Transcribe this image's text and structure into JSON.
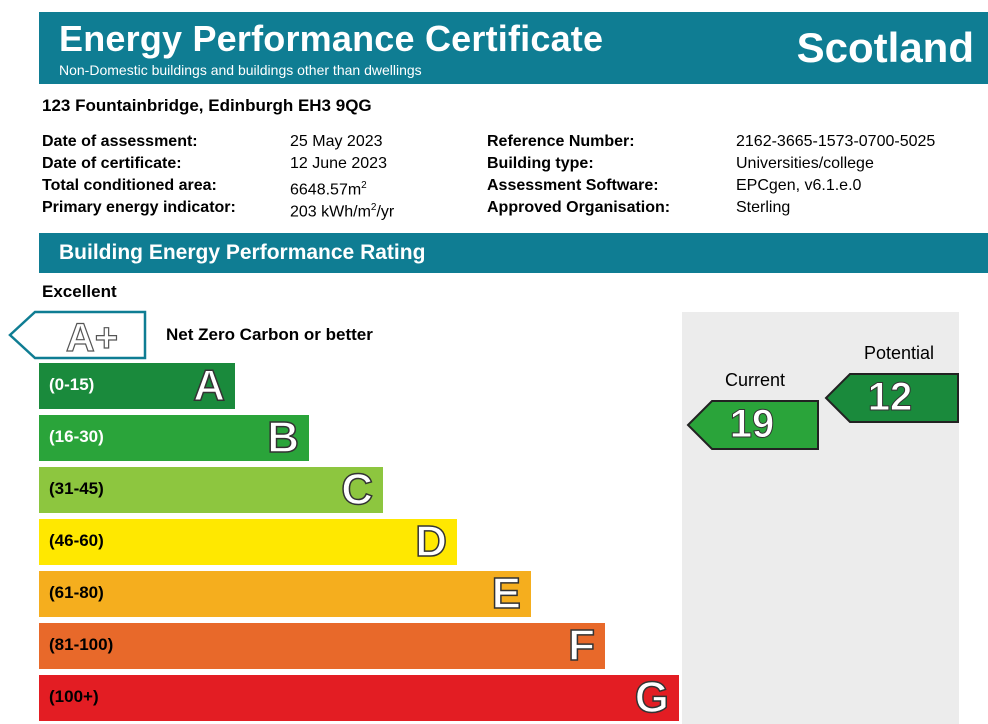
{
  "header": {
    "title": "Energy Performance Certificate",
    "subtitle": "Non-Domestic buildings and buildings other than dwellings",
    "region": "Scotland"
  },
  "address": "123 Fountainbridge, Edinburgh EH3 9QG",
  "details_left": [
    {
      "label": "Date of assessment:",
      "value": "25 May 2023"
    },
    {
      "label": "Date of certificate:",
      "value": "12 June 2023"
    },
    {
      "label": "Total conditioned area:",
      "value": "6648.57m",
      "sup": "2"
    },
    {
      "label": "Primary energy indicator:",
      "value_pre": "203 kWh/m",
      "sup": "2",
      "value_post": "/yr"
    }
  ],
  "details_right": [
    {
      "label": "Reference Number:",
      "value": "2162-3665-1573-0700-5025"
    },
    {
      "label": "Building type:",
      "value": "Universities/college"
    },
    {
      "label": "Assessment Software:",
      "value": "EPCgen, v6.1.e.0"
    },
    {
      "label": "Approved Organisation:",
      "value": "Sterling"
    }
  ],
  "section_title": "Building Energy Performance Rating",
  "excellent_label": "Excellent",
  "aplus": {
    "letter": "A+",
    "label": "Net Zero Carbon or better"
  },
  "bands": [
    {
      "range": "(0-15)",
      "letter": "A",
      "color": "#1a8a3c"
    },
    {
      "range": "(16-30)",
      "letter": "B",
      "color": "#2aa43a"
    },
    {
      "range": "(31-45)",
      "letter": "C",
      "color": "#8dc63f"
    },
    {
      "range": "(46-60)",
      "letter": "D",
      "color": "#ffe800"
    },
    {
      "range": "(61-80)",
      "letter": "E",
      "color": "#f5ae1e"
    },
    {
      "range": "(81-100)",
      "letter": "F",
      "color": "#e8692a"
    },
    {
      "range": "(100+)",
      "letter": "G",
      "color": "#e31d23"
    }
  ],
  "current": {
    "label": "Current",
    "value": "19",
    "color": "#2aa43a"
  },
  "potential": {
    "label": "Potential",
    "value": "12",
    "color": "#1a8a3c"
  }
}
